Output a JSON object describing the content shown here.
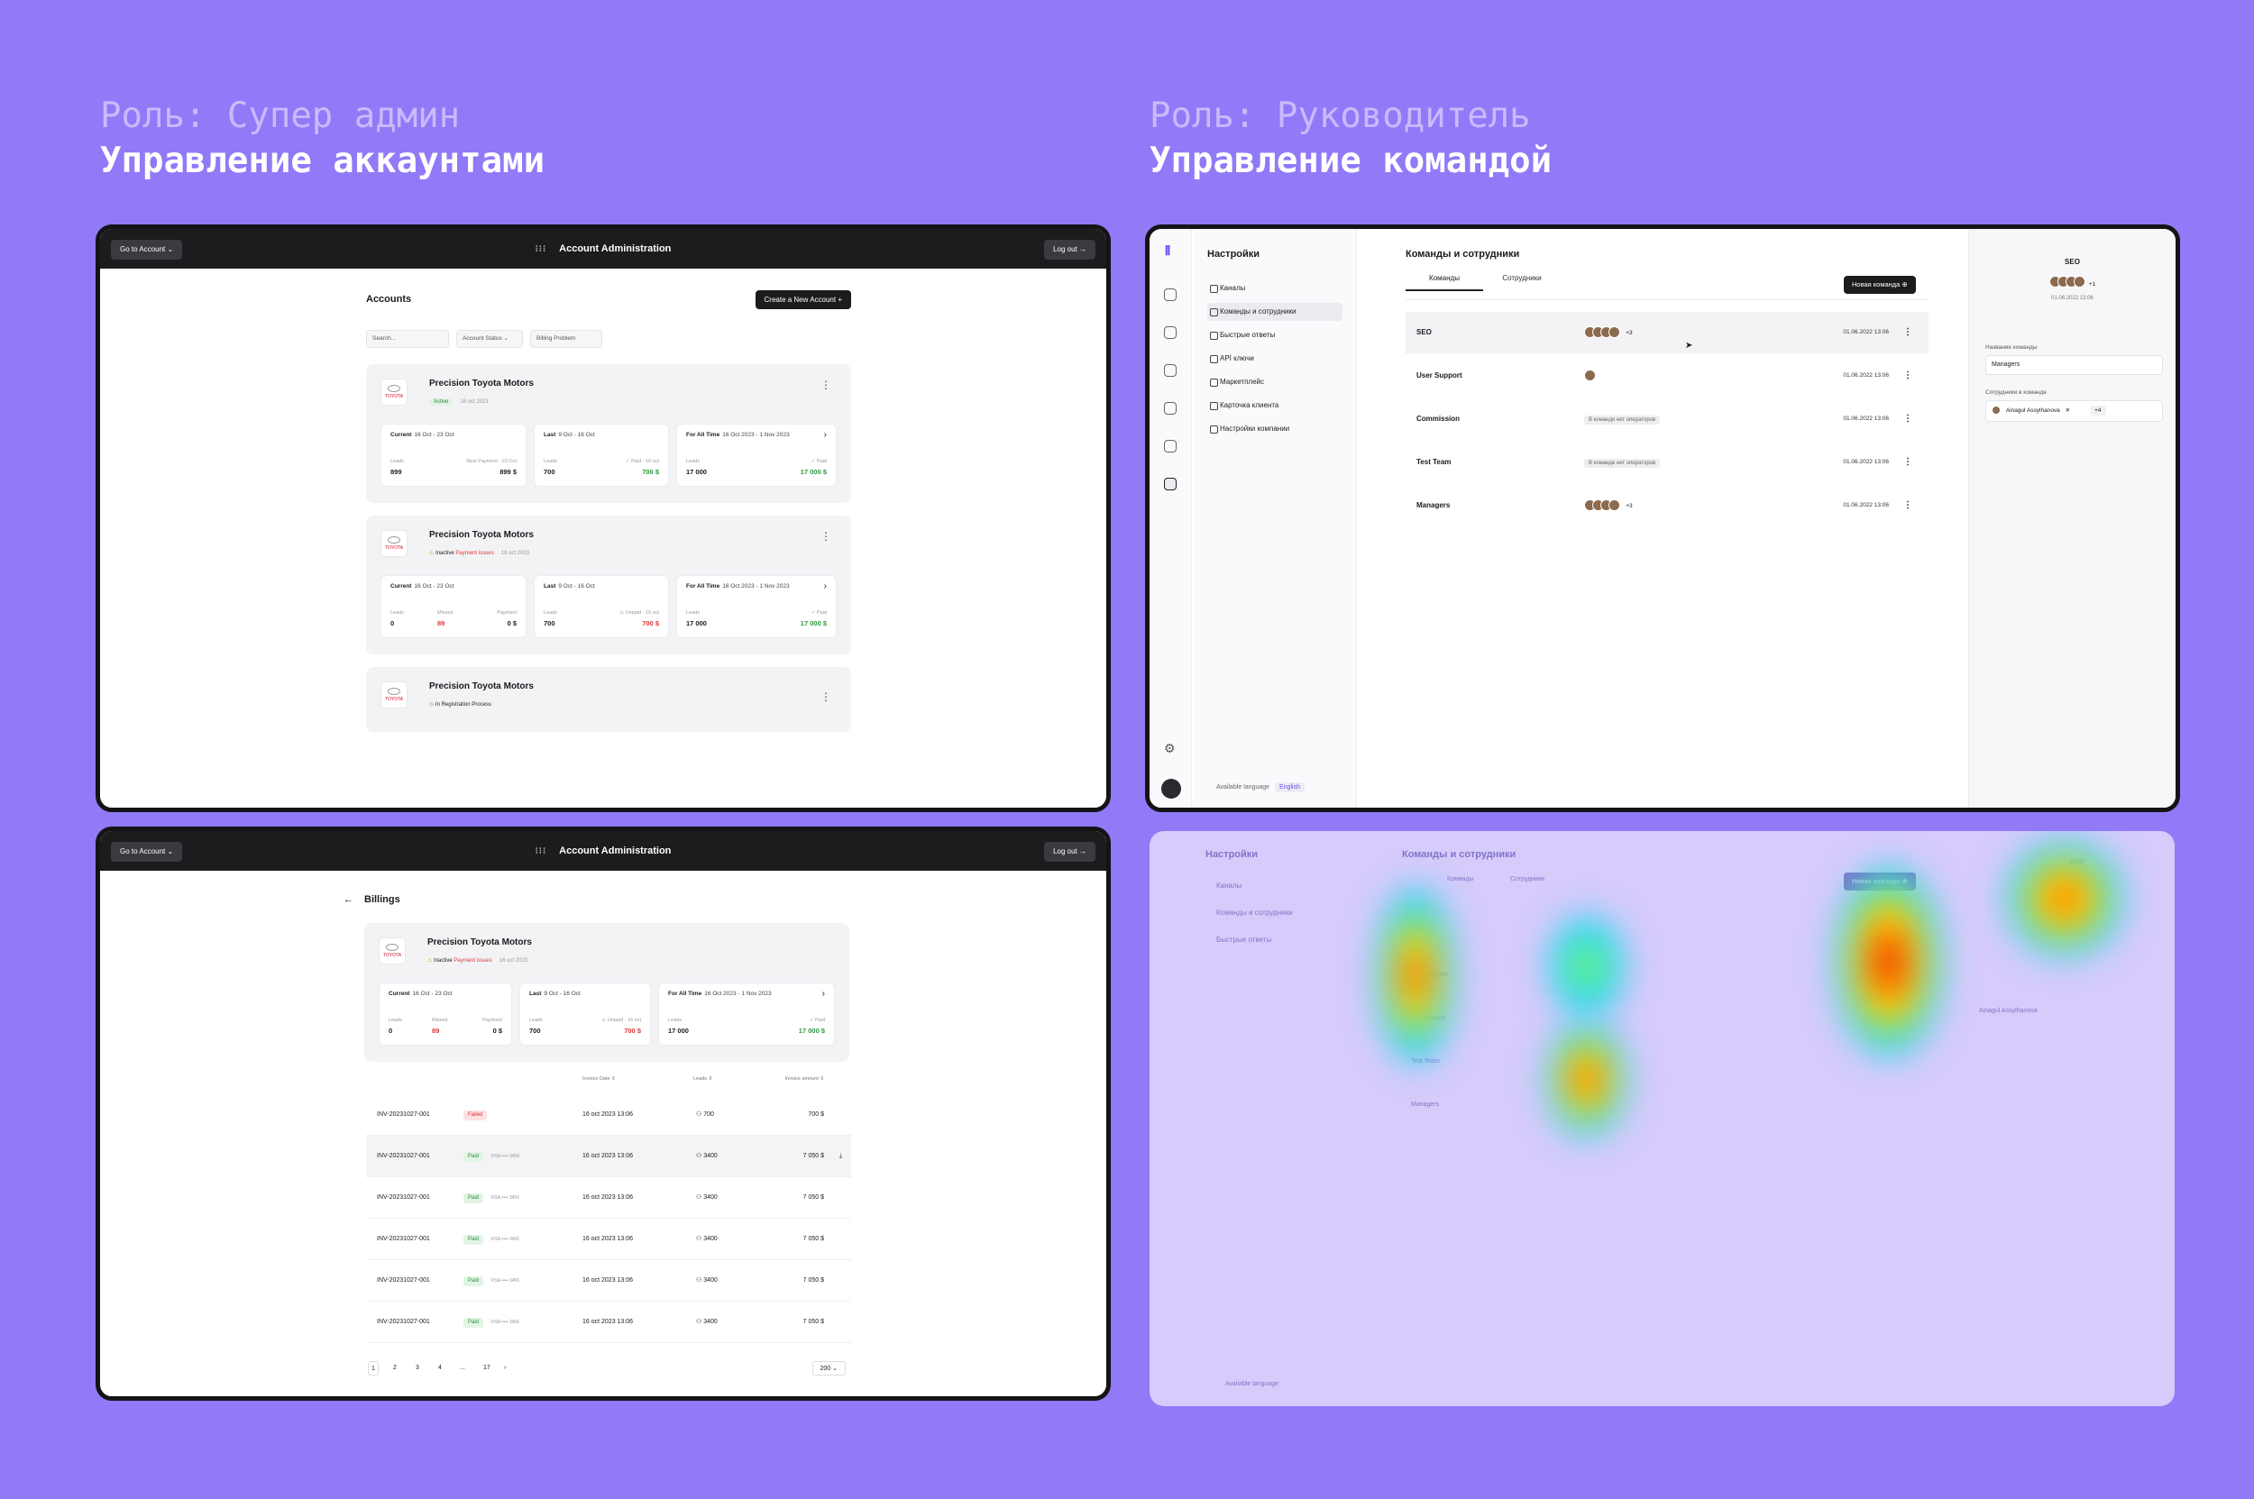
{
  "left_heading": {
    "role": "Роль: Супер админ",
    "title": "Управление аккаунтами"
  },
  "right_heading": {
    "role": "Роль: Руководитель",
    "title": "Управление командой"
  },
  "admin": {
    "go_to_account": "Go to Account ⌄",
    "title": "Account Administration",
    "logout": "Log out →",
    "accounts_title": "Accounts",
    "create_btn": "Create a New Account +",
    "search_placeholder": "Search...",
    "filter_status": "Account Status ⌄",
    "filter_billing": "Billing Problem",
    "logo_text": "TOYOTA",
    "cards": [
      {
        "name": "Precision Toyota Motors",
        "status": "Active",
        "date": "16 oct 2023",
        "current_label": "Current",
        "current_range": "16 Oct - 23 Oct",
        "leads_l": "Leads",
        "leads_v": "899",
        "np_l": "Next Payment - 23 Oct",
        "np_v": "899 $",
        "last_label": "Last",
        "last_range": "9 Oct - 16 Oct",
        "last_leads": "700",
        "paid_l": "✓ Paid - 16 oct",
        "paid_v": "700 $",
        "all_label": "For All Time",
        "all_range": "16 Oct 2023 - 1 Nov 2023",
        "all_leads": "17 000",
        "all_paid_l": "✓ Paid",
        "all_paid_v": "17 000 $"
      },
      {
        "name": "Precision Toyota Motors",
        "status_a": "Inactive",
        "status_b": "Payment issues",
        "date": "16 oct 2023",
        "current_label": "Current",
        "current_range": "16 Oct - 23 Oct",
        "leads_l": "Leads",
        "leads_v": "0",
        "missed_l": "Missed",
        "missed_v": "89",
        "pay_l": "Payment",
        "pay_v": "0 $",
        "last_label": "Last",
        "last_range": "9 Oct - 16 Oct",
        "last_leads": "700",
        "unpaid_l": "⚠ Unpaid - 16 oct",
        "unpaid_v": "700 $",
        "all_label": "For All Time",
        "all_range": "16 Oct 2023 - 1 Nov 2023",
        "all_leads": "17 000",
        "all_paid_l": "✓ Paid",
        "all_paid_v": "17 000 $"
      },
      {
        "name": "Precision Toyota Motors",
        "status": "In Registration Process"
      }
    ]
  },
  "billing": {
    "go_to_account": "Go to Account ⌄",
    "title": "Account Administration",
    "logout": "Log out →",
    "page_title": "Billings",
    "col_date": "Invoice Date ⇕",
    "col_leads": "Leads ⇕",
    "col_amount": "Invoice amount ⇕",
    "rows": [
      {
        "id": "INV-20231027-001",
        "status": "Failed",
        "card": "",
        "date": "16 oct 2023 13:06",
        "leads": "700",
        "amount": "700 $"
      },
      {
        "id": "INV-20231027-001",
        "status": "Paid",
        "card": "VISA •••• 3456",
        "date": "16 oct 2023 13:06",
        "leads": "3400",
        "amount": "7 050 $"
      },
      {
        "id": "INV-20231027-001",
        "status": "Paid",
        "card": "VISA •••• 3456",
        "date": "16 oct 2023 13:06",
        "leads": "3400",
        "amount": "7 050 $"
      },
      {
        "id": "INV-20231027-001",
        "status": "Paid",
        "card": "VISA •••• 3456",
        "date": "16 oct 2023 13:06",
        "leads": "3400",
        "amount": "7 050 $"
      },
      {
        "id": "INV-20231027-001",
        "status": "Paid",
        "card": "VISA •••• 3456",
        "date": "16 oct 2023 13:06",
        "leads": "3400",
        "amount": "7 050 $"
      },
      {
        "id": "INV-20231027-001",
        "status": "Paid",
        "card": "VISA •••• 3456",
        "date": "16 oct 2023 13:06",
        "leads": "3400",
        "amount": "7 050 $"
      }
    ],
    "pages": [
      "1",
      "2",
      "3",
      "4",
      "...",
      "17"
    ],
    "per_page": "200 ⌄"
  },
  "team": {
    "settings_title": "Настройки",
    "menu": [
      "Каналы",
      "Команды и сотрудники",
      "Быстрые ответы",
      "API ключи",
      "Маркетплейс",
      "Карточка клиента",
      "Настройки компании"
    ],
    "available_lang_label": "Available language",
    "lang": "English",
    "main_title": "Команды и сотрудники",
    "tab_teams": "Команды",
    "tab_staff": "Сотрудники",
    "new_team_btn": "Новая команда ⊕",
    "no_ops": "В команде нет операторов",
    "rows": [
      {
        "name": "SEO",
        "more": "+3",
        "date": "01.06.2022   13:06"
      },
      {
        "name": "User Support",
        "more": "",
        "date": "01.06.2022   13:06"
      },
      {
        "name": "Commission",
        "more": "",
        "date": "01.06.2022   13:06"
      },
      {
        "name": "Test Team",
        "more": "",
        "date": "01.06.2022   13:06"
      },
      {
        "name": "Managers",
        "more": "+3",
        "date": "01.06.2022   13:06"
      }
    ],
    "panel": {
      "title": "SEO",
      "more": "+1",
      "date": "01.06.2022  13:06",
      "name_label": "Название команды",
      "name_value": "Managers",
      "staff_label": "Сотрудники в команде",
      "staff_chip": "Ainagul Assylhanova",
      "staff_more": "+4"
    }
  }
}
